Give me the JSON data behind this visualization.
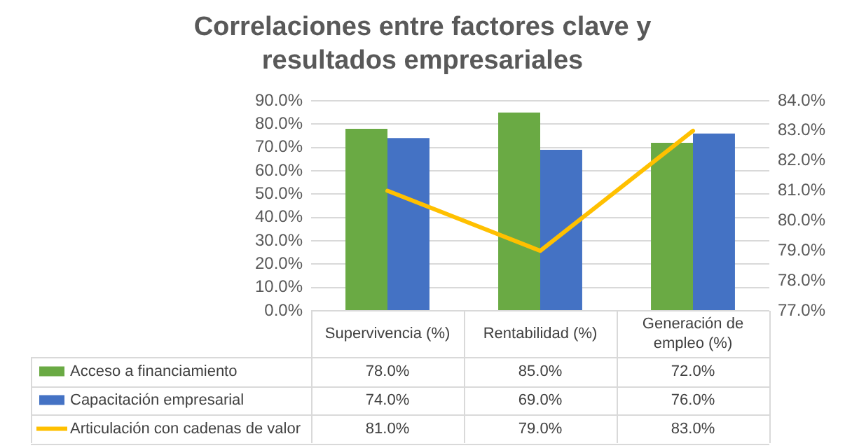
{
  "chart_data": {
    "type": "bar",
    "title": "Correlaciones  entre factores clave y resultados empresariales",
    "categories": [
      "Supervivencia (%)",
      "Rentabilidad (%)",
      "Generación de empleo (%)"
    ],
    "series": [
      {
        "name": "Acceso a financiamiento",
        "color": "#6aaa44",
        "values": [
          78,
          85,
          72
        ]
      },
      {
        "name": "Capacitación empresarial",
        "color": "#4472c4",
        "values": [
          74,
          69,
          76
        ]
      },
      {
        "name": "Articulación con cadenas de valor",
        "type": "line",
        "axis": "y2",
        "color": "#ffc000",
        "values": [
          81,
          79,
          83
        ],
        "marker": "none",
        "line_style": "solid"
      }
    ],
    "ylim": [
      0,
      90
    ],
    "yticks": [
      {
        "value": 0,
        "label": "0.0%"
      },
      {
        "value": 10,
        "label": "10.0%"
      },
      {
        "value": 20,
        "label": "20.0%"
      },
      {
        "value": 30,
        "label": "30.0%"
      },
      {
        "value": 40,
        "label": "40.0%"
      },
      {
        "value": 50,
        "label": "50.0%"
      },
      {
        "value": 60,
        "label": "60.0%"
      },
      {
        "value": 70,
        "label": "70.0%"
      },
      {
        "value": 80,
        "label": "80.0%"
      },
      {
        "value": 90,
        "label": "90.0%"
      }
    ],
    "y2lim": [
      77,
      84
    ],
    "y2ticks": [
      {
        "value": 77,
        "label": "77.0%"
      },
      {
        "value": 78,
        "label": "78.0%"
      },
      {
        "value": 79,
        "label": "79.0%"
      },
      {
        "value": 80,
        "label": "80.0%"
      },
      {
        "value": 81,
        "label": "81.0%"
      },
      {
        "value": 82,
        "label": "82.0%"
      },
      {
        "value": 83,
        "label": "83.0%"
      },
      {
        "value": 84,
        "label": "84.0%"
      }
    ],
    "value_labels": [
      [
        "78.0%",
        "85.0%",
        "72.0%"
      ],
      [
        "74.0%",
        "69.0%",
        "76.0%"
      ],
      [
        "81.0%",
        "79.0%",
        "83.0%"
      ]
    ],
    "grid": "y",
    "legend": "bottom"
  }
}
